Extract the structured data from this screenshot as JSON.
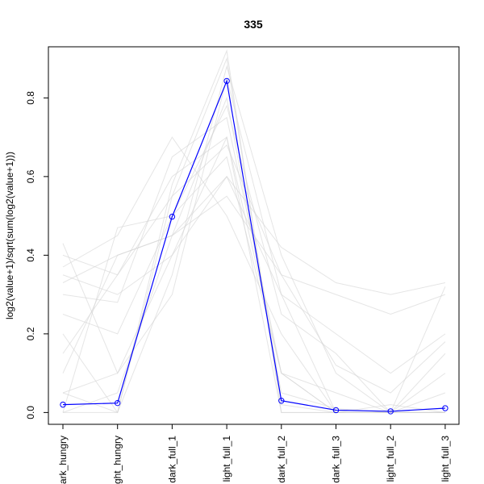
{
  "chart_data": {
    "type": "line",
    "title": "335",
    "xlabel": "",
    "ylabel": "log2(value+1)/sqrt(sum(log2(value+1)))",
    "categories": [
      "dark_hungry",
      "light_hungry",
      "dark_full_1",
      "light_full_1",
      "dark_full_2",
      "dark_full_3",
      "light_full_2",
      "light_full_3"
    ],
    "category_labels_shown": [
      "ark_hungry",
      "ght_hungry",
      "dark_full_1",
      "light_full_1",
      "dark_full_2",
      "dark_full_3",
      "light_full_2",
      "light_full_3"
    ],
    "y_ticks": [
      "0.0",
      "0.2",
      "0.4",
      "0.6",
      "0.8"
    ],
    "ylim": [
      -0.03,
      0.93
    ],
    "grid": false,
    "series": [
      {
        "values": [
          0.02,
          0.024,
          0.498,
          0.843,
          0.03,
          0.006,
          0.003,
          0.011
        ],
        "color": "#0000ff",
        "marker": "open-circle"
      }
    ],
    "background_lines": {
      "color": "#d3d3d3",
      "description_values": [
        [
          0.05,
          0.0,
          0.55,
          0.9,
          0.02,
          0.0,
          0.0,
          0.0
        ],
        [
          0.0,
          0.05,
          0.45,
          0.8,
          0.05,
          0.01,
          0.0,
          0.0
        ],
        [
          0.35,
          0.3,
          0.4,
          0.6,
          0.42,
          0.33,
          0.3,
          0.33
        ],
        [
          0.4,
          0.35,
          0.55,
          0.68,
          0.35,
          0.3,
          0.25,
          0.3
        ],
        [
          0.43,
          0.1,
          0.4,
          0.7,
          0.1,
          0.0,
          0.0,
          0.15
        ],
        [
          0.0,
          0.47,
          0.5,
          0.65,
          0.1,
          0.05,
          0.0,
          0.05
        ],
        [
          0.3,
          0.28,
          0.65,
          0.75,
          0.1,
          0.0,
          0.0,
          0.0
        ],
        [
          0.1,
          0.4,
          0.45,
          0.6,
          0.3,
          0.2,
          0.1,
          0.2
        ],
        [
          0.2,
          0.0,
          0.35,
          0.88,
          0.4,
          0.1,
          0.0,
          0.32
        ],
        [
          0.37,
          0.45,
          0.7,
          0.5,
          0.2,
          0.0,
          0.0,
          0.1
        ],
        [
          0.25,
          0.2,
          0.5,
          0.78,
          0.25,
          0.15,
          0.0,
          0.0
        ],
        [
          0.0,
          0.0,
          0.58,
          0.92,
          0.0,
          0.0,
          0.0,
          0.0
        ],
        [
          0.15,
          0.35,
          0.6,
          0.7,
          0.0,
          0.0,
          0.02,
          0.0
        ],
        [
          0.33,
          0.4,
          0.45,
          0.55,
          0.35,
          0.12,
          0.05,
          0.18
        ],
        [
          0.05,
          0.1,
          0.3,
          0.85,
          0.3,
          0.0,
          0.0,
          0.0
        ]
      ]
    }
  }
}
